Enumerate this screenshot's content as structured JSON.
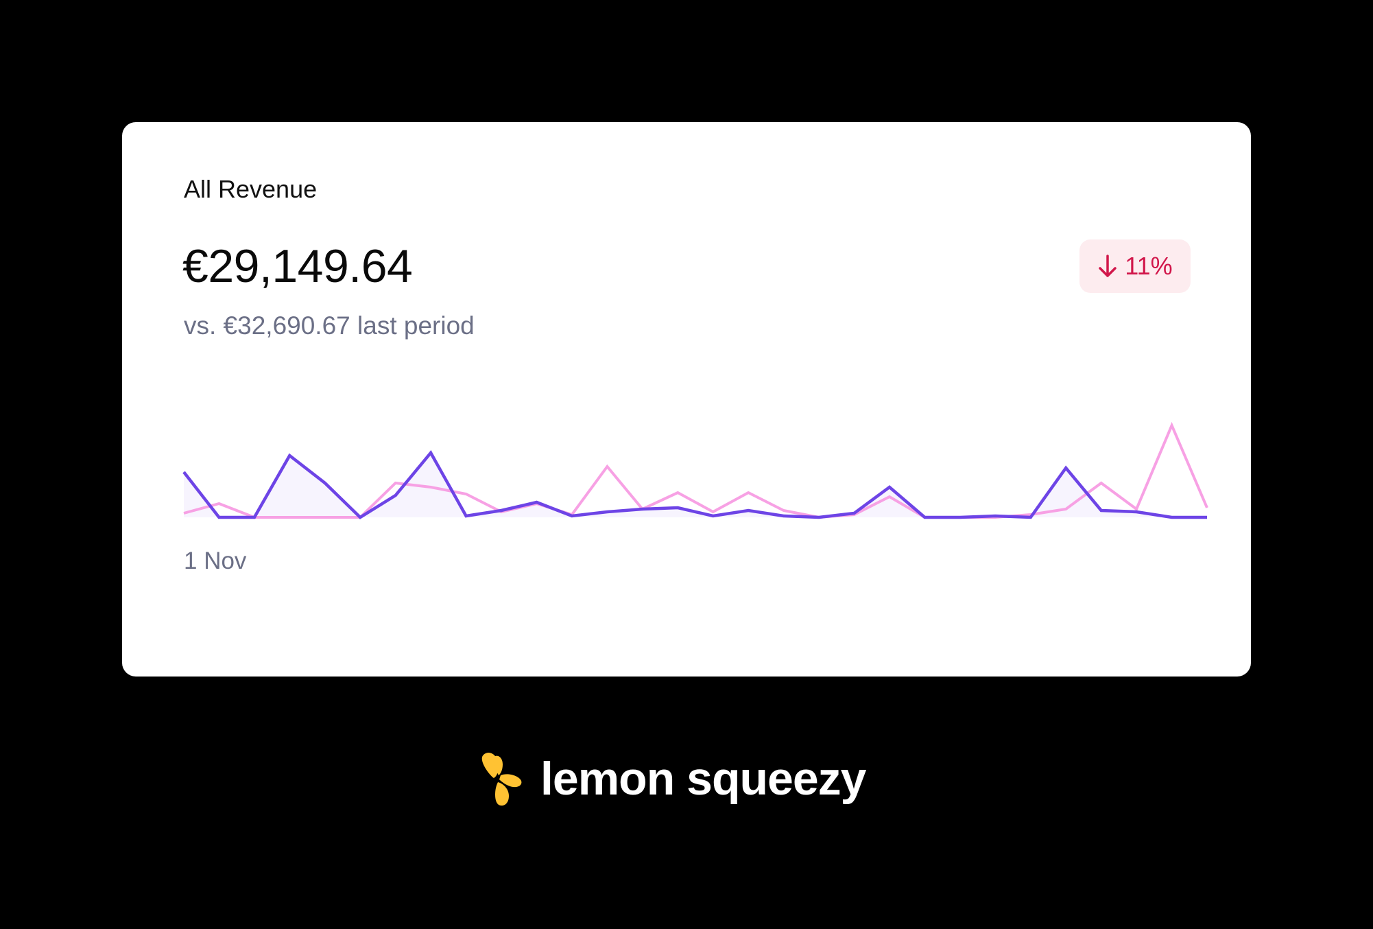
{
  "card": {
    "title": "All Revenue",
    "amount": "€29,149.64",
    "comparison": "vs. €32,690.67 last period",
    "change": {
      "label": "11%",
      "direction": "down",
      "icon": "arrow-down-icon",
      "color": "#d1164a",
      "background": "#fdecef"
    }
  },
  "brand": {
    "name": "lemon squeezy",
    "icon": "lemon-squeezy-logo-icon",
    "logo_color": "#ffc233"
  },
  "chart_data": {
    "type": "line",
    "x_start_label": "1 Nov",
    "ylim": [
      0,
      100
    ],
    "grid": false,
    "legend": "none",
    "series": [
      {
        "color": "#6d44e6",
        "fill": "#f7f4fe",
        "values": [
          33,
          0,
          0,
          45,
          25,
          0,
          16,
          47,
          1,
          5,
          11,
          1,
          4,
          6,
          7,
          1,
          5,
          1,
          0,
          3,
          22,
          0,
          0,
          1,
          0,
          36,
          5,
          4,
          0,
          0
        ]
      },
      {
        "color": "#f7a1e4",
        "values": [
          3,
          10,
          0,
          0,
          0,
          0,
          25,
          22,
          17,
          4,
          10,
          2,
          37,
          6,
          18,
          4,
          18,
          5,
          0,
          2,
          15,
          0,
          0,
          0,
          2,
          6,
          25,
          6,
          67,
          7
        ]
      }
    ]
  }
}
